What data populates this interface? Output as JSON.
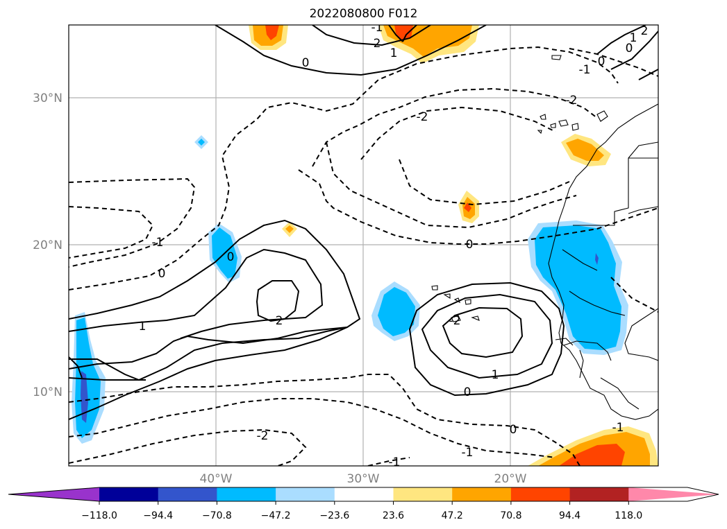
{
  "title": "2022080800 F012",
  "map": {
    "lat_labels": [
      "30°N",
      "20°N",
      "10°N"
    ],
    "lon_labels": [
      "40°W",
      "30°W",
      "20°W"
    ]
  },
  "contour_labels": [
    "0",
    "-1",
    "-2",
    "2",
    "1",
    "0",
    "-1",
    "-2",
    "0",
    "-1",
    "0",
    "1",
    "2",
    "0",
    "-2",
    "1",
    "0",
    "-1",
    "-2",
    "0",
    "-1",
    "2",
    "1",
    "-1",
    "0"
  ],
  "colorbar": {
    "ticks": [
      "−118.0",
      "−94.4",
      "−70.8",
      "−47.2",
      "−23.6",
      "23.6",
      "47.2",
      "70.8",
      "94.4",
      "118.0"
    ],
    "colors": [
      "#9933cc",
      "#000099",
      "#3355cc",
      "#00bbff",
      "#aaddff",
      "#ffffff",
      "#ffe680",
      "#ffa500",
      "#ff4400",
      "#b22222",
      "#ff88aa"
    ]
  }
}
